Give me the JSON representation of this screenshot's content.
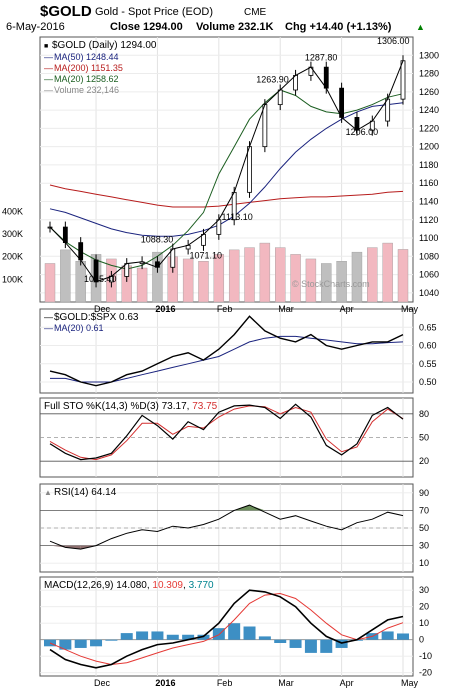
{
  "header": {
    "symbol": "$GOLD",
    "name": "Gold - Spot Price (EOD)",
    "exchange": "CME",
    "date": "6-May-2016",
    "close_label": "Close 1294.00",
    "volume_label": "Volume 232.1K",
    "chg_label": "Chg +14.40 (+1.13%)",
    "chg_arrow": "▲",
    "watermark": "© StockCharts.com"
  },
  "colors": {
    "price": "#000000",
    "ma50": "#1a237e",
    "ma200": "#b71c1c",
    "ma20": "#1b5e20",
    "volume_up": "#f2b8c0",
    "volume_down": "#bfbfbf",
    "sto_k": "#000000",
    "sto_d": "#d32f2f",
    "rsi_fill": "#6b8e5a",
    "macd_hist": "#3d8fc4",
    "macd_signal": "#e53935",
    "macd_hist_label": "#00838f",
    "bull": "#008000"
  },
  "x_labels": [
    "Dec",
    "2016",
    "Feb",
    "Mar",
    "Apr",
    "May"
  ],
  "chart_data": [
    {
      "type": "line",
      "title": "$GOLD (Daily) 1294.00",
      "series": [
        {
          "name": "MA(50) 1248.44",
          "values": [
            1132,
            1128,
            1122,
            1116,
            1110,
            1106,
            1103,
            1102,
            1102,
            1104,
            1108,
            1114,
            1124,
            1138,
            1156,
            1176,
            1194,
            1208,
            1220,
            1230,
            1238,
            1244,
            1246,
            1248
          ]
        },
        {
          "name": "MA(200) 1151.35",
          "values": [
            1158,
            1154,
            1151,
            1148,
            1145,
            1142,
            1139,
            1136,
            1134,
            1134,
            1134,
            1135,
            1137,
            1139,
            1141,
            1143,
            1144,
            1145,
            1145,
            1146,
            1147,
            1148,
            1150,
            1151
          ]
        },
        {
          "name": "MA(20) 1258.62",
          "values": [
            1112,
            1096,
            1085,
            1076,
            1070,
            1066,
            1070,
            1080,
            1092,
            1108,
            1128,
            1170,
            1200,
            1230,
            1248,
            1262,
            1256,
            1244,
            1238,
            1236,
            1240,
            1246,
            1254,
            1258
          ]
        },
        {
          "name": "Volume 232,146",
          "values": [
            170,
            230,
            180,
            210,
            190,
            160,
            150,
            220,
            200,
            190,
            180,
            210,
            230,
            240,
            260,
            240,
            210,
            190,
            170,
            180,
            220,
            240,
            260,
            232
          ]
        }
      ],
      "price": [
        1112,
        1095,
        1076,
        1052,
        1058,
        1072,
        1074,
        1068,
        1088,
        1092,
        1104,
        1120,
        1150,
        1200,
        1246,
        1262,
        1278,
        1287,
        1264,
        1232,
        1218,
        1228,
        1252,
        1294
      ],
      "annotations": [
        "1287.80",
        "1263.90",
        "1306.00",
        "1206.00",
        "1113.10",
        "1088.30",
        "1071.10",
        "1045.40"
      ],
      "ylim": [
        1030,
        1320
      ],
      "y_ticks": [
        1040,
        1060,
        1080,
        1100,
        1120,
        1140,
        1160,
        1180,
        1200,
        1220,
        1240,
        1260,
        1280,
        1300
      ],
      "volume_ticks": [
        "400K",
        "300K",
        "200K",
        "100K"
      ]
    },
    {
      "type": "line",
      "title": "$GOLD:$SPX 0.63",
      "series": [
        {
          "name": "$GOLD:$SPX 0.63",
          "values": [
            0.53,
            0.52,
            0.5,
            0.49,
            0.5,
            0.52,
            0.53,
            0.55,
            0.57,
            0.58,
            0.56,
            0.59,
            0.63,
            0.68,
            0.64,
            0.62,
            0.61,
            0.63,
            0.6,
            0.59,
            0.6,
            0.61,
            0.61,
            0.63
          ]
        },
        {
          "name": "MA(20) 0.61",
          "values": [
            0.51,
            0.51,
            0.5,
            0.5,
            0.5,
            0.51,
            0.52,
            0.53,
            0.54,
            0.55,
            0.56,
            0.57,
            0.59,
            0.61,
            0.62,
            0.625,
            0.625,
            0.62,
            0.615,
            0.61,
            0.605,
            0.605,
            0.608,
            0.61
          ]
        }
      ],
      "ylim": [
        0.47,
        0.7
      ],
      "y_ticks": [
        0.5,
        0.55,
        0.6,
        0.65
      ]
    },
    {
      "type": "line",
      "title": "Full STO %K(14,3) %D(3) 73.17, 73.75",
      "series": [
        {
          "name": "%K(14,3) 73.17",
          "values": [
            42,
            30,
            22,
            24,
            30,
            52,
            78,
            65,
            48,
            70,
            60,
            82,
            90,
            91,
            88,
            74,
            92,
            76,
            40,
            28,
            42,
            78,
            88,
            73.17
          ]
        },
        {
          "name": "%D(3) 73.75",
          "values": [
            45,
            34,
            25,
            22,
            28,
            46,
            68,
            68,
            54,
            64,
            62,
            76,
            86,
            90,
            89,
            80,
            88,
            82,
            48,
            32,
            38,
            70,
            86,
            73.75
          ]
        }
      ],
      "ylim": [
        0,
        100
      ],
      "y_ticks": [
        20,
        50,
        80
      ]
    },
    {
      "type": "line",
      "title": "RSI(14) 64.14",
      "series": [
        {
          "name": "RSI(14) 64.14",
          "values": [
            35,
            28,
            26,
            30,
            38,
            44,
            48,
            46,
            52,
            50,
            54,
            60,
            70,
            76,
            68,
            60,
            64,
            58,
            52,
            48,
            56,
            60,
            68,
            64.14
          ]
        }
      ],
      "ylim": [
        0,
        100
      ],
      "y_ticks": [
        10,
        30,
        50,
        70,
        90
      ]
    },
    {
      "type": "line",
      "title": "MACD(12,26,9) 14.080, 10.309, 3.770",
      "series": [
        {
          "name": "MACD(12,26,9) 14.080",
          "values": [
            -6,
            -12,
            -15,
            -17,
            -15,
            -10,
            -6,
            -3,
            -2,
            0,
            2,
            10,
            22,
            30,
            29,
            26,
            20,
            10,
            2,
            -2,
            0,
            6,
            12,
            14.08
          ]
        },
        {
          "name": "signal 10.309",
          "values": [
            -2,
            -6,
            -10,
            -13,
            -15,
            -14,
            -11,
            -8,
            -5,
            -3,
            -1,
            3,
            12,
            22,
            27,
            28,
            25,
            18,
            10,
            3,
            0,
            2,
            7,
            10.309
          ]
        },
        {
          "name": "histogram 3.770",
          "values": [
            -4,
            -6,
            -5,
            -4,
            0,
            4,
            5,
            5,
            3,
            3,
            3,
            7,
            10,
            8,
            2,
            -2,
            -5,
            -8,
            -8,
            -5,
            0,
            4,
            5,
            3.77
          ]
        }
      ],
      "ylim": [
        -22,
        38
      ],
      "y_ticks": [
        -20,
        -10,
        0,
        10,
        20,
        30
      ]
    }
  ]
}
